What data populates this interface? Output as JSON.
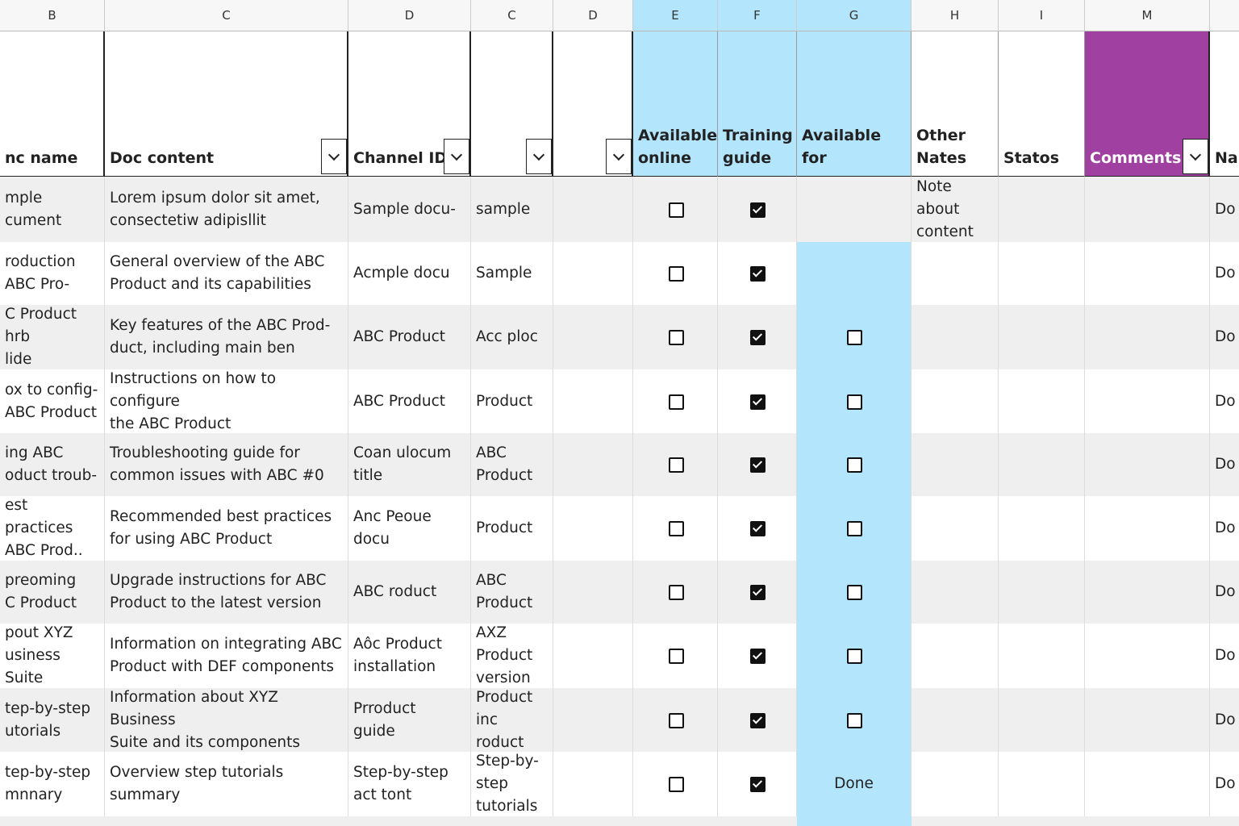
{
  "columns": [
    "B",
    "C",
    "D",
    "C",
    "D",
    "E",
    "F",
    "G",
    "H",
    "I",
    "M",
    null
  ],
  "headers": [
    "nc name",
    "Doc content",
    "Channel ID",
    null,
    null,
    "Available\nonline",
    "Training\nguide",
    "Available\nfor",
    "Other\nNates",
    "Statos",
    "Comments",
    "Na"
  ],
  "rows": [
    [
      "mple\ncument",
      "Lorem ipsum dolor sit amet,\nconsectetiw adipisllit",
      "Sample docu-",
      "sample",
      null,
      false,
      true,
      null,
      "Note about  content",
      null,
      null,
      "Do"
    ],
    [
      "roduction\nABC Pro-",
      "General overview of the ABC\nProduct and its capabilities",
      "Acmple docu",
      "Sample",
      null,
      false,
      true,
      null,
      null,
      null,
      null,
      "Do"
    ],
    [
      "C Product hrb\nlide",
      "Key features of the ABC Prod-\nduct, including main ben",
      "ABC Product",
      "Acc ploc",
      null,
      false,
      true,
      false,
      null,
      null,
      null,
      "Do"
    ],
    [
      "ox to config-\nABC Product",
      "Instructions on how to configure\nthe ABC Product",
      "ABC Product",
      "Product",
      null,
      false,
      true,
      false,
      null,
      null,
      null,
      "Do"
    ],
    [
      "ing ABC\noduct troub-",
      "Troubleshooting guide for\ncommon issues with ABC #0",
      "Coan ulocum\ntitle",
      "ABC Product",
      null,
      false,
      true,
      false,
      null,
      null,
      null,
      "Do"
    ],
    [
      "est practices\nABC Prod..",
      "Recommended best practices\nfor using ABC Product",
      "Anc Peoue\ndocu",
      "Product",
      null,
      false,
      true,
      false,
      null,
      null,
      null,
      "Do"
    ],
    [
      "preoming\nC Product",
      "Upgrade instructions for ABC\nProduct to the latest version",
      "ABC roduct",
      "ABC Product",
      null,
      false,
      true,
      false,
      null,
      null,
      null,
      "Do"
    ],
    [
      "pout XYZ\nusiness Suite",
      "Information on integrating ABC\nProduct with DEF components",
      "Aôc Product\ninstallation",
      "AXZ Product\nversion",
      null,
      false,
      true,
      false,
      null,
      null,
      null,
      "Do"
    ],
    [
      "tep-by-step\nutorials",
      "Information about XYZ Business\nSuite and its components",
      "Prroduct\nguide",
      "Product inc roduct",
      null,
      false,
      true,
      false,
      null,
      null,
      null,
      "Do"
    ],
    [
      "tep-by-step\nmnnary",
      "Overview step tutorials\nsummary",
      "Step-by-step\nact tont",
      "Step-by-step\ntutorials",
      null,
      false,
      true,
      "Done",
      null,
      null,
      null,
      "Do"
    ]
  ]
}
